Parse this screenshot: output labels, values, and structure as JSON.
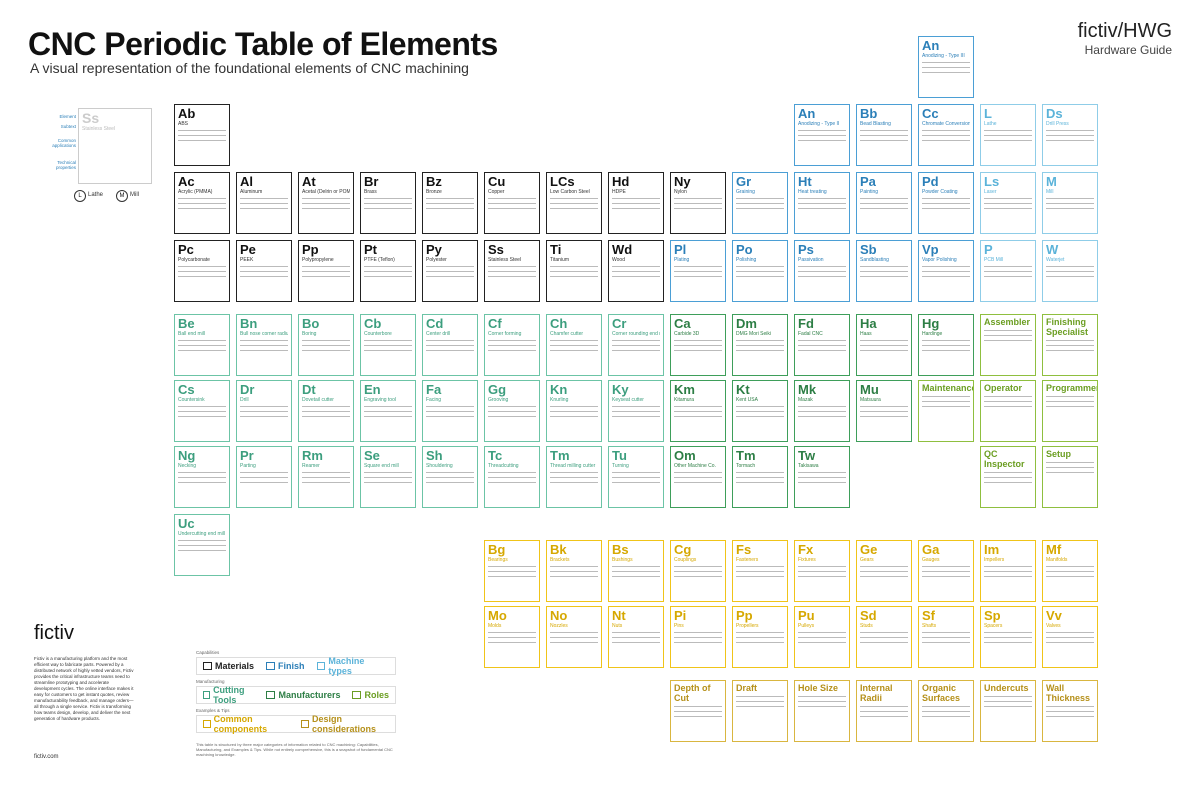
{
  "header": {
    "title": "CNC Periodic Table of Elements",
    "subtitle": "A visual representation of the foundational elements of CNC machining",
    "brand_main": "fictiv/HWG",
    "brand_sub": "Hardware Guide"
  },
  "key": {
    "sample_symbol": "Ss",
    "sample_name": "Stainless Steel",
    "labels": [
      "Element",
      "Subtext",
      "Common applications",
      "Technical properties"
    ],
    "lathe_label": "Lathe",
    "mill_label": "Mill",
    "lathe_letter": "L",
    "mill_letter": "M"
  },
  "colors": {
    "materials": "#222222",
    "finish": "#4b9fd5",
    "machine_types": "#8fcde8",
    "cutting_tools": "#6cc4a6",
    "manufacturers": "#3e9e5a",
    "roles": "#8fbf3f",
    "components": "#f0c419",
    "design": "#d9b640"
  },
  "materials_row1": [
    {
      "sym": "Ab",
      "name": "ABS"
    }
  ],
  "materials_row2": [
    {
      "sym": "Ac",
      "name": "Acrylic (PMMA)"
    },
    {
      "sym": "Al",
      "name": "Aluminum"
    },
    {
      "sym": "At",
      "name": "Acetal (Delrin or POM)"
    },
    {
      "sym": "Br",
      "name": "Brass"
    },
    {
      "sym": "Bz",
      "name": "Bronze"
    },
    {
      "sym": "Cu",
      "name": "Copper"
    },
    {
      "sym": "LCs",
      "name": "Low Carbon Steel"
    },
    {
      "sym": "Hd",
      "name": "HDPE"
    },
    {
      "sym": "Ny",
      "name": "Nylon"
    }
  ],
  "materials_row3": [
    {
      "sym": "Pc",
      "name": "Polycarbonate"
    },
    {
      "sym": "Pe",
      "name": "PEEK"
    },
    {
      "sym": "Pp",
      "name": "Polypropylene"
    },
    {
      "sym": "Pt",
      "name": "PTFE (Teflon)"
    },
    {
      "sym": "Py",
      "name": "Polyester"
    },
    {
      "sym": "Ss",
      "name": "Stainless Steel"
    },
    {
      "sym": "Ti",
      "name": "Titanium"
    },
    {
      "sym": "Wd",
      "name": "Wood"
    }
  ],
  "finish_top": [
    {
      "sym": "An",
      "name": "Anodizing - Type II"
    },
    {
      "sym": "Bb",
      "name": "Bead Blasting"
    },
    {
      "sym": "Cc",
      "name": "Chromate Conversion Coating"
    },
    {
      "sym": "An",
      "name": "Anodizing - Type III"
    }
  ],
  "finish_row2": [
    {
      "sym": "Gr",
      "name": "Graining"
    },
    {
      "sym": "Ht",
      "name": "Heat treating"
    },
    {
      "sym": "Pa",
      "name": "Painting"
    },
    {
      "sym": "Pd",
      "name": "Powder Coating"
    }
  ],
  "finish_row3": [
    {
      "sym": "Pl",
      "name": "Plating"
    },
    {
      "sym": "Po",
      "name": "Polishing"
    },
    {
      "sym": "Ps",
      "name": "Passivation"
    },
    {
      "sym": "Sb",
      "name": "Sandblasting"
    },
    {
      "sym": "Vp",
      "name": "Vapor Polishing"
    }
  ],
  "machine_types": [
    {
      "sym": "L",
      "name": "Lathe"
    },
    {
      "sym": "Ls",
      "name": "Laser"
    },
    {
      "sym": "M",
      "name": "Mill"
    },
    {
      "sym": "Ds",
      "name": "Drill Press"
    },
    {
      "sym": "P",
      "name": "PCB Mill"
    },
    {
      "sym": "W",
      "name": "Waterjet"
    }
  ],
  "tools_row1": [
    {
      "sym": "Be",
      "name": "Ball end mill"
    },
    {
      "sym": "Bn",
      "name": "Bull nose corner radius end mill"
    },
    {
      "sym": "Bo",
      "name": "Boring"
    },
    {
      "sym": "Cb",
      "name": "Counterbore"
    },
    {
      "sym": "Cd",
      "name": "Center drill"
    },
    {
      "sym": "Cf",
      "name": "Corner forming"
    },
    {
      "sym": "Ch",
      "name": "Chamfer cutter"
    },
    {
      "sym": "Cr",
      "name": "Corner rounding end mill"
    }
  ],
  "tools_row2": [
    {
      "sym": "Cs",
      "name": "Countersink"
    },
    {
      "sym": "Dr",
      "name": "Drill"
    },
    {
      "sym": "Dt",
      "name": "Dovetail cutter"
    },
    {
      "sym": "En",
      "name": "Engraving tool"
    },
    {
      "sym": "Fa",
      "name": "Facing"
    },
    {
      "sym": "Gg",
      "name": "Grooving"
    },
    {
      "sym": "Kn",
      "name": "Knurling"
    },
    {
      "sym": "Ky",
      "name": "Keyseat cutter"
    }
  ],
  "tools_row3": [
    {
      "sym": "Ng",
      "name": "Necking"
    },
    {
      "sym": "Pr",
      "name": "Parting"
    },
    {
      "sym": "Rm",
      "name": "Reamer"
    },
    {
      "sym": "Se",
      "name": "Square end mill"
    },
    {
      "sym": "Sh",
      "name": "Shouldering"
    },
    {
      "sym": "Tc",
      "name": "Threadcutting"
    },
    {
      "sym": "Tm",
      "name": "Thread milling cutter"
    },
    {
      "sym": "Tu",
      "name": "Turning"
    }
  ],
  "tools_row4": [
    {
      "sym": "Uc",
      "name": "Undercutting end mill"
    }
  ],
  "manufacturers_row1": [
    {
      "sym": "Ca",
      "name": "Carbide 3D"
    },
    {
      "sym": "Dm",
      "name": "DMG Mori Seiki"
    },
    {
      "sym": "Fd",
      "name": "Fadal CNC"
    },
    {
      "sym": "Ha",
      "name": "Haas"
    },
    {
      "sym": "Hg",
      "name": "Hardinge"
    }
  ],
  "manufacturers_row2": [
    {
      "sym": "Km",
      "name": "Kitamura"
    },
    {
      "sym": "Kt",
      "name": "Kent USA"
    },
    {
      "sym": "Mk",
      "name": "Mazak"
    },
    {
      "sym": "Mu",
      "name": "Matsuura"
    }
  ],
  "manufacturers_row3": [
    {
      "sym": "Om",
      "name": "Other Machine Co."
    },
    {
      "sym": "Tm",
      "name": "Tormach"
    },
    {
      "sym": "Tw",
      "name": "Takisawa"
    }
  ],
  "roles": [
    {
      "sym": "Assembler",
      "name": ""
    },
    {
      "sym": "Finishing Specialist",
      "name": ""
    },
    {
      "sym": "Maintenance",
      "name": ""
    },
    {
      "sym": "Operator",
      "name": ""
    },
    {
      "sym": "Programmer",
      "name": ""
    },
    {
      "sym": "QC Inspector",
      "name": ""
    },
    {
      "sym": "Setup",
      "name": ""
    }
  ],
  "components_row1": [
    {
      "sym": "Bg",
      "name": "Bearings"
    },
    {
      "sym": "Bk",
      "name": "Brackets"
    },
    {
      "sym": "Bs",
      "name": "Bushings"
    },
    {
      "sym": "Cg",
      "name": "Couplings"
    },
    {
      "sym": "Fs",
      "name": "Fasteners"
    },
    {
      "sym": "Fx",
      "name": "Fixtures"
    },
    {
      "sym": "Ge",
      "name": "Gears"
    },
    {
      "sym": "Ga",
      "name": "Gauges"
    },
    {
      "sym": "Im",
      "name": "Impellers"
    },
    {
      "sym": "Mf",
      "name": "Manifolds"
    }
  ],
  "components_row2": [
    {
      "sym": "Mo",
      "name": "Molds"
    },
    {
      "sym": "No",
      "name": "Nozzles"
    },
    {
      "sym": "Nt",
      "name": "Nuts"
    },
    {
      "sym": "Pi",
      "name": "Pins"
    },
    {
      "sym": "Pp",
      "name": "Propellers"
    },
    {
      "sym": "Pu",
      "name": "Pulleys"
    },
    {
      "sym": "Sd",
      "name": "Studs"
    },
    {
      "sym": "Sf",
      "name": "Shafts"
    },
    {
      "sym": "Sp",
      "name": "Spacers"
    },
    {
      "sym": "Vv",
      "name": "Valves"
    }
  ],
  "design_row": [
    {
      "sym": "Depth of Cut",
      "name": ""
    },
    {
      "sym": "Draft",
      "name": ""
    },
    {
      "sym": "Hole Size",
      "name": ""
    },
    {
      "sym": "Internal Radii",
      "name": ""
    },
    {
      "sym": "Organic Surfaces",
      "name": ""
    },
    {
      "sym": "Undercuts",
      "name": ""
    },
    {
      "sym": "Wall Thickness",
      "name": ""
    }
  ],
  "footer": {
    "logo": "fictiv",
    "about": "Fictiv is a manufacturing platform and the most efficient way to fabricate parts. Powered by a distributed network of highly vetted vendors, Fictiv provides the critical infrastructure teams need to streamline prototyping and accelerate development cycles. The online interface makes it easy for customers to get instant quotes, review manufacturability feedback, and manage orders—all through a single service. Fictiv is transforming how teams design, develop, and deliver the next generation of hardware products.",
    "site": "fictiv.com"
  },
  "legend": {
    "h1": "Capabilities",
    "h2": "Manufacturing",
    "h3": "Examples & Tips",
    "materials": "Materials",
    "finish": "Finish",
    "machine_types": "Machine types",
    "cutting_tools": "Cutting Tools",
    "manufacturers": "Manufacturers",
    "roles": "Roles",
    "components": "Common components",
    "design": "Design considerations",
    "note": "This table is structured by three major categories of information related to CNC machining: Capabilities, Manufacturing, and Examples & Tips. While not entirely comprehensive, this is a snapshot of fundamental CNC machining knowledge."
  }
}
